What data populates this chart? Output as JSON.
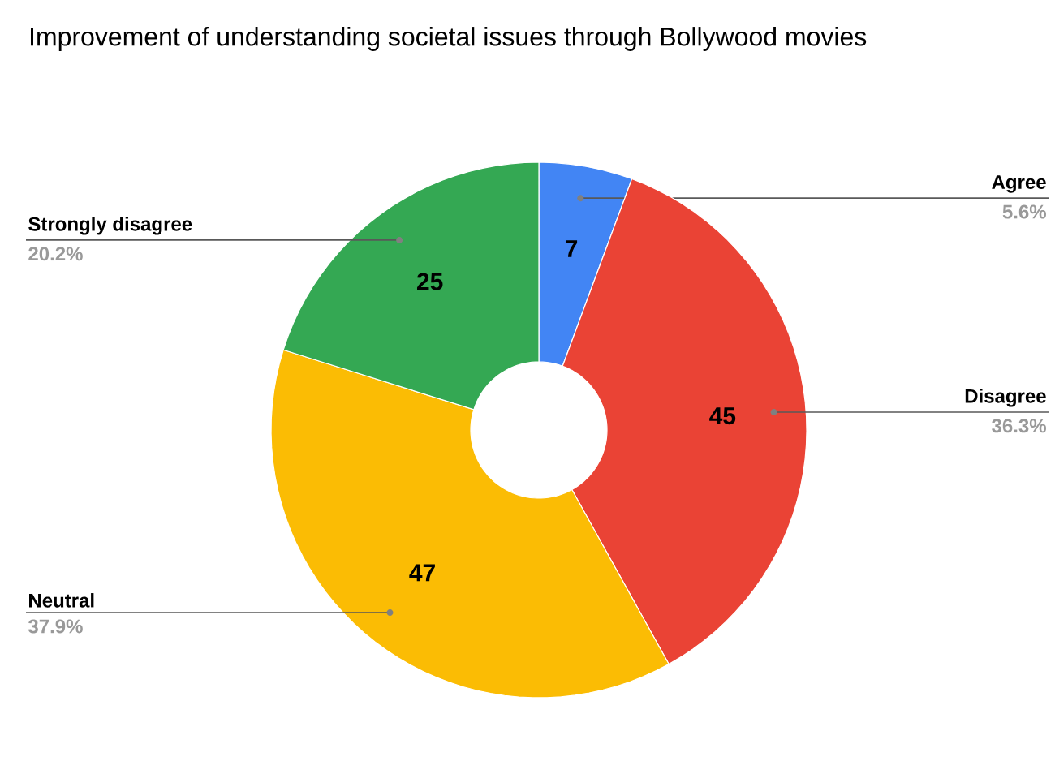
{
  "chart_data": {
    "type": "donut",
    "title": "Improvement of understanding societal issues through Bollywood movies",
    "categories": [
      "Agree",
      "Disagree",
      "Neutral",
      "Strongly disagree"
    ],
    "values": [
      7,
      45,
      47,
      25
    ],
    "colors": [
      "#4285f4",
      "#ea4335",
      "#fbbc04",
      "#34a853"
    ],
    "value_labels": [
      "7",
      "45",
      "47",
      "25"
    ],
    "annotations": [
      "5.6%",
      "36.3%",
      "37.9%",
      "20.2%"
    ]
  }
}
